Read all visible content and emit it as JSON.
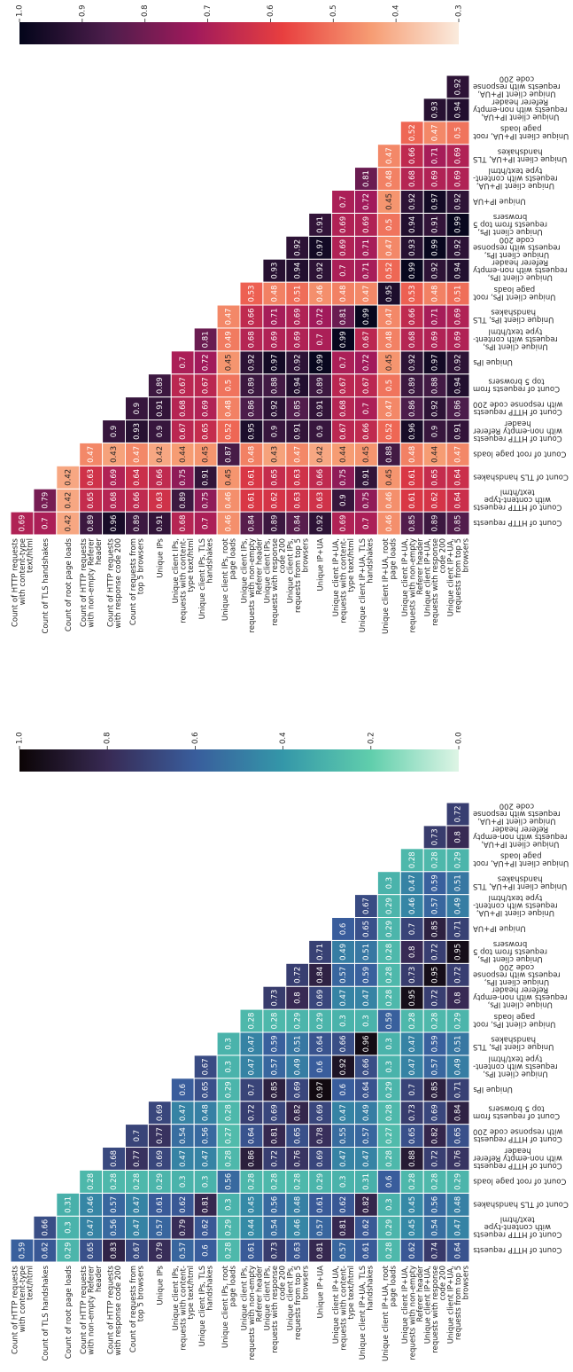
{
  "chart_data": [
    {
      "type": "heatmap",
      "colormap": "rocket_r",
      "clim": [
        0.3,
        1.0
      ],
      "cticks": [
        {
          "value": 1,
          "label": "1.0"
        },
        0.9,
        0.8,
        0.7,
        0.6,
        0.5,
        0.4,
        0.3
      ],
      "y_labels": [
        "Count of HTTP requests\nwith content-type\ntext/html",
        "Count of TLS handshakes",
        "Count of root page loads",
        "Count of HTTP requests\nwith non-empty Referer\nheader",
        "Count of HTTP requests\nwith response code 200",
        "Count of requests from\ntop 5 browsers",
        "Unique IPs",
        "Unique client IPs,\nrequests with content-\ntype text/html",
        "Unique client IPs, TLS\nhandshakes",
        "Unique client IPs, root\npage loads",
        "Unique client IPs,\nrequests with non-empty\nReferer header",
        "Unique client IPs,\nrequests with response\ncode 200",
        "Unique client IPs,\nrequests from top 5\nbrowsers",
        "Unique IP+UA",
        "Unique client IP+UA,\nrequests with content-\ntype text/html",
        "Unique client IP+UA, TLS\nhandshakes",
        "Unique client IP+UA, root\npage loads",
        "Unique client IP+UA,\nrequests with non-empty\nReferer header",
        "Unique client IP+UA,\nrequests with response\ncode 200",
        "Unique client IP+UA,\nrequests from top 5\nbrowsers"
      ],
      "x_labels": [
        "Count of HTTP requests",
        "Count of HTTP requests\nwith content-type\ntext/html",
        "Count of TLS handshakes",
        "Count of root page loads",
        "Count of HTTP requests\nwith non-empty Referer\nheader",
        "Count of HTTP requests\nwith response code 200",
        "Count of requests from\ntop 5 browsers",
        "Unique IPs",
        "Unique client IPs,\nrequests with content-\ntype text/html",
        "Unique client IPs, TLS\nhandshakes",
        "Unique client IPs, root\npage loads",
        "Unique client IPs,\nrequests with non-empty\nReferer header",
        "Unique client IPs,\nrequests with response\ncode 200",
        "Unique client IPs,\nrequests from top 5\nbrowsers",
        "Unique IP+UA",
        "Unique client IP+UA,\nrequests with content-\ntype text/html",
        "Unique client IP+UA, TLS\nhandshakes",
        "Unique client IP+UA, root\npage loads",
        "Unique client IP+UA,\nrequests with non-empty\nReferer header",
        "Unique client IP+UA,\nrequests with response\ncode 200"
      ],
      "values": [
        [
          0.69
        ],
        [
          0.7,
          0.79
        ],
        [
          0.42,
          0.42,
          0.42
        ],
        [
          0.89,
          0.65,
          0.63,
          0.47
        ],
        [
          0.96,
          0.68,
          0.69,
          0.43,
          0.9
        ],
        [
          0.89,
          0.66,
          0.64,
          0.47,
          0.93,
          0.9
        ],
        [
          0.91,
          0.63,
          0.66,
          0.42,
          0.9,
          0.91,
          0.89
        ],
        [
          0.68,
          0.89,
          0.75,
          0.44,
          0.67,
          0.68,
          0.67,
          0.7
        ],
        [
          0.7,
          0.75,
          0.91,
          0.45,
          0.65,
          0.69,
          0.67,
          0.72,
          0.81
        ],
        [
          0.46,
          0.46,
          0.45,
          0.87,
          0.52,
          0.48,
          0.5,
          0.45,
          0.49,
          0.47
        ],
        [
          0.84,
          0.61,
          0.61,
          0.48,
          0.95,
          0.86,
          0.89,
          0.92,
          0.68,
          0.66,
          0.53
        ],
        [
          0.89,
          0.62,
          0.65,
          0.43,
          0.9,
          0.92,
          0.88,
          0.97,
          0.69,
          0.71,
          0.48,
          0.93
        ],
        [
          0.84,
          0.63,
          0.63,
          0.47,
          0.91,
          0.85,
          0.94,
          0.92,
          0.69,
          0.69,
          0.51,
          0.94,
          0.92
        ],
        [
          0.92,
          0.63,
          0.66,
          0.42,
          0.9,
          0.91,
          0.89,
          0.99,
          0.7,
          0.72,
          0.46,
          0.92,
          0.97,
          0.91
        ],
        [
          0.69,
          0.9,
          0.75,
          0.44,
          0.67,
          0.68,
          0.67,
          0.7,
          0.99,
          0.81,
          0.48,
          0.7,
          0.69,
          0.69,
          0.7
        ],
        [
          0.7,
          0.75,
          0.91,
          0.45,
          0.66,
          0.7,
          0.67,
          0.72,
          0.67,
          0.99,
          0.47,
          0.71,
          0.71,
          0.69,
          0.72,
          0.81
        ],
        [
          0.46,
          0.46,
          0.45,
          0.88,
          0.52,
          0.47,
          0.5,
          0.45,
          0.48,
          0.47,
          0.95,
          0.52,
          0.47,
          0.5,
          0.45,
          0.48,
          0.47
        ],
        [
          0.85,
          0.61,
          0.61,
          0.48,
          0.96,
          0.86,
          0.89,
          0.92,
          0.68,
          0.66,
          0.53,
          0.99,
          0.93,
          0.94,
          0.92,
          0.68,
          0.66,
          0.52
        ],
        [
          0.89,
          0.62,
          0.65,
          0.44,
          0.9,
          0.92,
          0.88,
          0.97,
          0.69,
          0.71,
          0.48,
          0.92,
          0.99,
          0.91,
          0.97,
          0.69,
          0.71,
          0.47,
          0.93
        ],
        [
          0.85,
          0.64,
          0.64,
          0.47,
          0.91,
          0.86,
          0.94,
          0.92,
          0.69,
          0.69,
          0.51,
          0.94,
          0.92,
          0.99,
          0.92,
          0.69,
          0.69,
          0.5,
          0.94,
          0.92
        ]
      ]
    },
    {
      "type": "heatmap",
      "colormap": "mako_r",
      "clim": [
        0.0,
        1.0
      ],
      "cticks": [
        {
          "value": 1,
          "label": "1.0"
        },
        0.8,
        0.6,
        0.4,
        0.2,
        {
          "value": 0,
          "label": "0.0"
        }
      ],
      "y_labels": [
        "Count of HTTP requests\nwith content-type\ntext/html",
        "Count of TLS handshakes",
        "Count of root page loads",
        "Count of HTTP requests\nwith non-empty Referer\nheader",
        "Count of HTTP requests\nwith response code 200",
        "Count of requests from\ntop 5 browsers",
        "Unique IPs",
        "Unique client IPs,\nrequests with content-\ntype text/html",
        "Unique client IPs, TLS\nhandshakes",
        "Unique client IPs, root\npage loads",
        "Unique client IPs,\nrequests with non-empty\nReferer header",
        "Unique client IPs,\nrequests with response\ncode 200",
        "Unique client IPs,\nrequests from top 5\nbrowsers",
        "Unique IP+UA",
        "Unique client IP+UA,\nrequests with content-\ntype text/html",
        "Unique client IP+UA, TLS\nhandshakes",
        "Unique client IP+UA, root\npage loads",
        "Unique client IP+UA,\nrequests with non-empty\nReferer header",
        "Unique client IP+UA,\nrequests with response\ncode 200",
        "Unique client IP+UA,\nrequests from top 5\nbrowsers"
      ],
      "x_labels": [
        "Count of HTTP requests",
        "Count of HTTP requests\nwith content-type\ntext/html",
        "Count of TLS handshakes",
        "Count of root page loads",
        "Count of HTTP requests\nwith non-empty Referer\nheader",
        "Count of HTTP requests\nwith response code 200",
        "Count of requests from\ntop 5 browsers",
        "Unique IPs",
        "Unique client IPs,\nrequests with content-\ntype text/html",
        "Unique client IPs, TLS\nhandshakes",
        "Unique client IPs, root\npage loads",
        "Unique client IPs,\nrequests with non-empty\nReferer header",
        "Unique client IPs,\nrequests with response\ncode 200",
        "Unique client IPs,\nrequests from top 5\nbrowsers",
        "Unique IP+UA",
        "Unique client IP+UA,\nrequests with content-\ntype text/html",
        "Unique client IP+UA, TLS\nhandshakes",
        "Unique client IP+UA, root\npage loads",
        "Unique client IP+UA,\nrequests with non-empty\nReferer header",
        "Unique client IP+UA,\nrequests with response\ncode 200"
      ],
      "values": [
        [
          0.59
        ],
        [
          0.62,
          0.66
        ],
        [
          0.29,
          0.3,
          0.31
        ],
        [
          0.65,
          0.47,
          0.46,
          0.28
        ],
        [
          0.83,
          0.56,
          0.57,
          0.28,
          0.68
        ],
        [
          0.67,
          0.47,
          0.47,
          0.28,
          0.77,
          0.7
        ],
        [
          0.79,
          0.57,
          0.61,
          0.29,
          0.69,
          0.77,
          0.69
        ],
        [
          0.57,
          0.79,
          0.62,
          0.3,
          0.47,
          0.54,
          0.47,
          0.6
        ],
        [
          0.6,
          0.62,
          0.81,
          0.3,
          0.47,
          0.56,
          0.48,
          0.65,
          0.67
        ],
        [
          0.28,
          0.29,
          0.3,
          0.56,
          0.28,
          0.27,
          0.28,
          0.29,
          0.3,
          0.3
        ],
        [
          0.61,
          0.44,
          0.45,
          0.28,
          0.86,
          0.64,
          0.72,
          0.7,
          0.47,
          0.47,
          0.28
        ],
        [
          0.73,
          0.54,
          0.56,
          0.28,
          0.72,
          0.81,
          0.69,
          0.85,
          0.57,
          0.59,
          0.28,
          0.73
        ],
        [
          0.63,
          0.46,
          0.48,
          0.28,
          0.76,
          0.65,
          0.82,
          0.69,
          0.49,
          0.51,
          0.29,
          0.8,
          0.72
        ],
        [
          0.81,
          0.57,
          0.61,
          0.29,
          0.69,
          0.78,
          0.69,
          0.97,
          0.6,
          0.64,
          0.29,
          0.69,
          0.84,
          0.71
        ],
        [
          0.57,
          0.81,
          0.62,
          0.3,
          0.47,
          0.55,
          0.47,
          0.6,
          0.92,
          0.66,
          0.3,
          0.47,
          0.57,
          0.49,
          0.6
        ],
        [
          0.61,
          0.62,
          0.82,
          0.31,
          0.47,
          0.57,
          0.49,
          0.64,
          0.66,
          0.96,
          0.3,
          0.47,
          0.59,
          0.51,
          0.65,
          0.67
        ],
        [
          0.28,
          0.29,
          0.3,
          0.6,
          0.28,
          0.27,
          0.28,
          0.29,
          0.3,
          0.3,
          0.59,
          0.28,
          0.28,
          0.28,
          0.29,
          0.29,
          0.3
        ],
        [
          0.62,
          0.45,
          0.45,
          0.28,
          0.88,
          0.65,
          0.73,
          0.7,
          0.47,
          0.47,
          0.28,
          0.95,
          0.73,
          0.8,
          0.7,
          0.46,
          0.47,
          0.28
        ],
        [
          0.74,
          0.54,
          0.56,
          0.28,
          0.72,
          0.82,
          0.69,
          0.85,
          0.57,
          0.59,
          0.28,
          0.72,
          0.95,
          0.72,
          0.85,
          0.57,
          0.59,
          0.28,
          0.73
        ],
        [
          0.64,
          0.47,
          0.48,
          0.29,
          0.76,
          0.65,
          0.84,
          0.71,
          0.49,
          0.51,
          0.29,
          0.8,
          0.72,
          0.95,
          0.71,
          0.49,
          0.51,
          0.29,
          0.8,
          0.72
        ]
      ]
    }
  ]
}
